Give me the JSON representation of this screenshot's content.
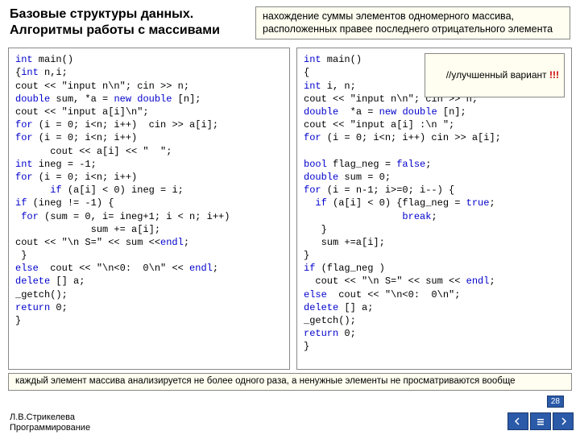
{
  "header": {
    "title1": "Базовые структуры данных.",
    "title2": "Алгоритмы работы с массивами",
    "description": "нахождение суммы элементов одномерного массива, расположенных правее последнего отрицательного элемента"
  },
  "code_left": {
    "lines": [
      "int main()",
      "{int n,i;",
      "cout << \"input n\\n\"; cin >> n;",
      "double sum, *a = new double [n];",
      "cout << \"input a[i]\\n\";",
      "for (i = 0; i<n; i++)  cin >> a[i];",
      "for (i = 0; i<n; i++)",
      "      cout << a[i] << \"  \";",
      "int ineg = -1;",
      "for (i = 0; i<n; i++)",
      "      if (a[i] < 0) ineg = i;",
      "if (ineg != -1) {",
      " for (sum = 0, i= ineg+1; i < n; i++)",
      "             sum += a[i];",
      "cout << \"\\n S=\" << sum <<endl;",
      " }",
      "else  cout << \"\\n<0:  0\\n\" << endl;",
      "delete [] a;",
      "_getch();",
      "return 0;",
      "}"
    ]
  },
  "code_right": {
    "improved_label": "//улучшенный вариант",
    "improved_excl": " !!!",
    "lines": [
      "int main()",
      "{",
      "int i, n;",
      "cout << \"input n\\n\"; cin >> n;",
      "double  *a = new double [n];",
      "cout << \"input a[i] :\\n \";",
      "for (i = 0; i<n; i++) cin >> a[i];",
      "",
      "bool flag_neg = false;",
      "double sum = 0;",
      "for (i = n-1; i>=0; i--) {",
      "  if (a[i] < 0) {flag_neg = true;",
      "                 break;",
      "   }",
      "   sum +=a[i];",
      "}",
      "if (flag_neg )",
      "  cout << \"\\n S=\" << sum << endl;",
      "else  cout << \"\\n<0:  0\\n\";",
      "delete [] a;",
      "_getch();",
      "return 0;",
      "}"
    ]
  },
  "bottom_note": "каждый элемент массива анализируется не более одного раза, а ненужные элементы не просматриваются вообще",
  "footer": {
    "line1": "Л.В.Стрикелева",
    "line2": "Программирование"
  },
  "page_number": "28",
  "colors": {
    "box_border": "#888888",
    "box_bg": "#fffef0",
    "keyword": "#0000cc",
    "excl": "#cc0000",
    "nav_bg": "#2a5aa8"
  },
  "keywords": [
    "int",
    "double",
    "bool",
    "new",
    "delete",
    "for",
    "if",
    "else",
    "return",
    "true",
    "false",
    "break",
    "endl"
  ]
}
